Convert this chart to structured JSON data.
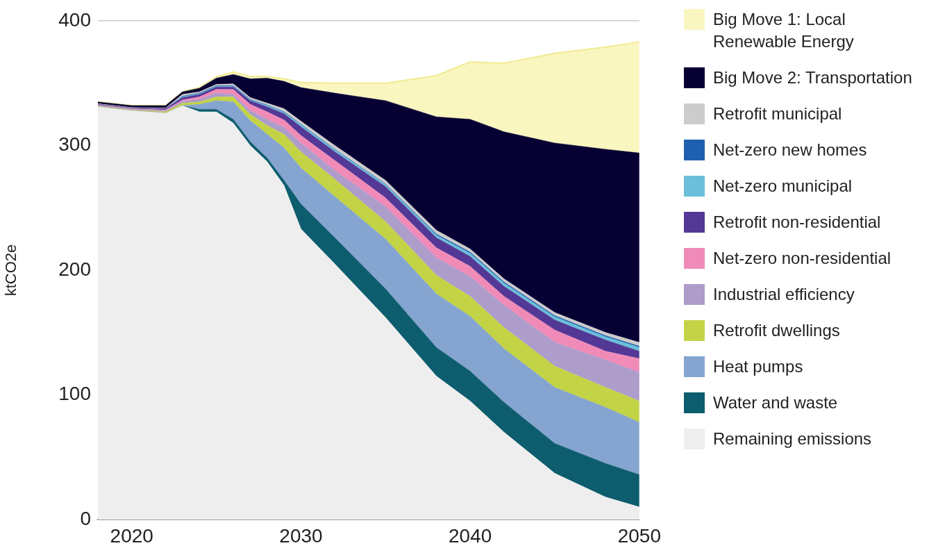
{
  "chart_data": {
    "type": "area",
    "stacked": true,
    "ylabel": "ktCO2e",
    "x": [
      2018,
      2020,
      2022,
      2023,
      2024,
      2025,
      2026,
      2027,
      2028,
      2029,
      2030,
      2032,
      2035,
      2038,
      2040,
      2042,
      2045,
      2048,
      2050
    ],
    "xlim": [
      2018,
      2050
    ],
    "xticks": [
      2020,
      2030,
      2040,
      2050
    ],
    "ylim": [
      0,
      400
    ],
    "yticks": [
      0,
      100,
      200,
      300,
      400
    ],
    "grid": "y",
    "legend": "right",
    "series": [
      {
        "name": "Remaining emissions",
        "color": "#eeeeee",
        "values": [
          331,
          328,
          326,
          332,
          327,
          327,
          318,
          300,
          287,
          268,
          233,
          205,
          162,
          115,
          95,
          70,
          37,
          18,
          10
        ]
      },
      {
        "name": "Water and waste",
        "color": "#0d5d6e",
        "values": [
          0,
          0,
          0,
          0,
          2,
          2,
          3,
          3,
          3,
          4,
          20,
          21,
          23,
          23,
          24,
          24,
          24,
          27,
          26
        ]
      },
      {
        "name": "Heat pumps",
        "color": "#85a5d0",
        "values": [
          0,
          0,
          0,
          0,
          4,
          7,
          14,
          17,
          19,
          26,
          29,
          33,
          40,
          43,
          44,
          43,
          45,
          45,
          42
        ]
      },
      {
        "name": "Retrofit dwellings",
        "color": "#c3d346",
        "values": [
          0.5,
          0.5,
          1,
          2,
          2,
          3,
          4,
          5,
          7,
          11,
          13,
          14,
          14,
          15,
          16,
          17,
          17,
          16,
          17
        ]
      },
      {
        "name": "Industrial efficiency",
        "color": "#ae9ccb",
        "values": [
          0.5,
          0.5,
          1,
          1.5,
          2,
          3,
          2,
          3,
          5,
          5.5,
          7,
          7,
          12,
          14,
          16,
          18,
          19,
          22,
          23
        ]
      },
      {
        "name": "Net-zero non-residential",
        "color": "#f08bb8",
        "values": [
          0.5,
          0.5,
          0.5,
          1,
          2,
          3,
          4,
          5,
          6,
          6,
          6,
          8,
          7,
          8,
          8,
          7,
          10,
          7,
          11
        ]
      },
      {
        "name": "Retrofit non-residential",
        "color": "#533896",
        "values": [
          0.5,
          0.5,
          1,
          2,
          2,
          2,
          2,
          3,
          4,
          5,
          7,
          7,
          9,
          8,
          8,
          8,
          8,
          9,
          6
        ]
      },
      {
        "name": "Net-zero municipal",
        "color": "#6bbfd9",
        "values": [
          0,
          0,
          0,
          0.5,
          0.5,
          0.5,
          0.5,
          0.5,
          1,
          1,
          1.5,
          1.5,
          1.5,
          2,
          2.5,
          2.5,
          2.5,
          2.5,
          3
        ]
      },
      {
        "name": "Net-zero new homes",
        "color": "#1f5fb0",
        "values": [
          0,
          0,
          0,
          0.5,
          0.5,
          0.5,
          0.5,
          0.5,
          0.5,
          0.5,
          0.5,
          0.5,
          0.5,
          1,
          1,
          1,
          1,
          1,
          1
        ]
      },
      {
        "name": "Retrofit municipal",
        "color": "#cccccc",
        "values": [
          0.5,
          0.5,
          0.5,
          1.5,
          1,
          1,
          1.5,
          1.5,
          1.5,
          2.5,
          2.5,
          3,
          3,
          3,
          2.5,
          2.5,
          2.5,
          2.5,
          3
        ]
      },
      {
        "name": "Big Move 2: Transportation",
        "color": "#070033",
        "values": [
          1.5,
          1.5,
          2,
          2,
          3,
          5,
          7.5,
          15,
          20,
          22,
          27,
          42,
          64,
          91,
          104,
          118,
          136,
          147,
          152
        ]
      },
      {
        "name": "Big Move 1: Local Renewable Energy",
        "color": "#faf6c0",
        "values": [
          0,
          0,
          0,
          0,
          0.5,
          1,
          2,
          2,
          1.5,
          2,
          4,
          8,
          14,
          33,
          46,
          55,
          72,
          82,
          89
        ]
      }
    ]
  }
}
